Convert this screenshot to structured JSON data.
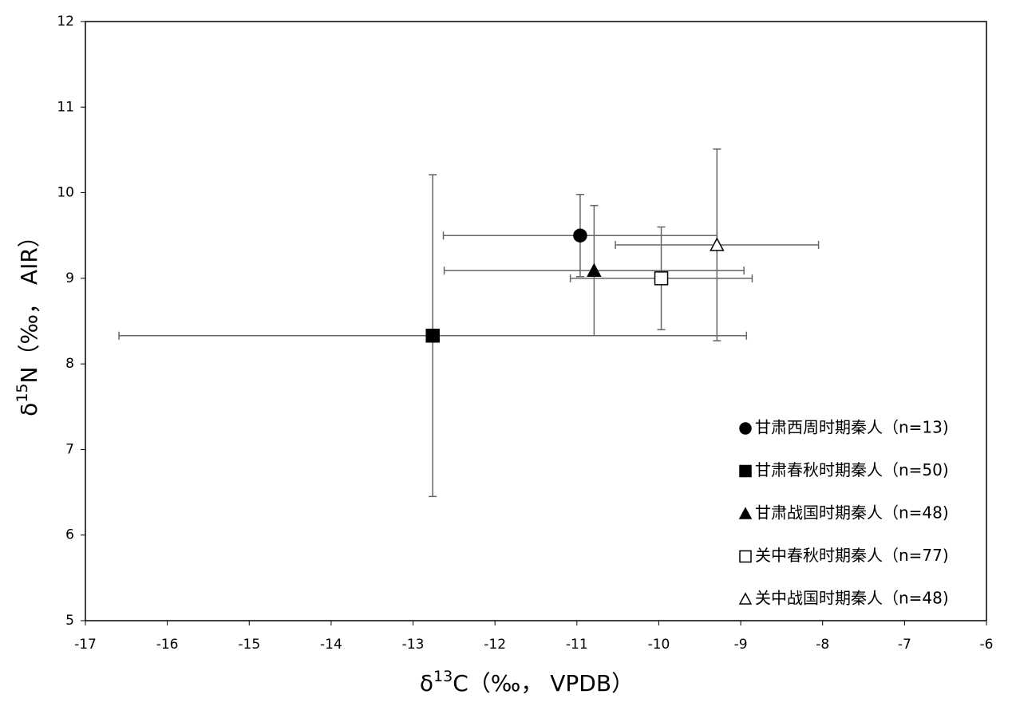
{
  "chart_data": {
    "type": "scatter",
    "x_label": [
      "δ",
      "13",
      "C（‰， VPDB）"
    ],
    "y_label": [
      "δ",
      "15",
      "N（‰， AIR）"
    ],
    "xlim": [
      -17,
      -6
    ],
    "xticks": [
      -17,
      -16,
      -15,
      -14,
      -13,
      -12,
      -11,
      -10,
      -9,
      -8,
      -7,
      -6
    ],
    "ylim": [
      5,
      12
    ],
    "yticks": [
      5,
      6,
      7,
      8,
      9,
      10,
      11,
      12
    ],
    "grid": false,
    "legend": "lower right",
    "error_color": "#666666",
    "series": [
      {
        "name": "甘肃西周时期秦人（n=13)",
        "marker": "circle",
        "filled": true,
        "color": "#000000",
        "x": [
          -10.96
        ],
        "values": [
          9.5
        ],
        "xerr": [
          1.67
        ],
        "yerr": [
          0.48
        ]
      },
      {
        "name": "甘肃春秋时期秦人（n=50)",
        "marker": "square",
        "filled": true,
        "color": "#000000",
        "x": [
          -12.76
        ],
        "values": [
          8.33
        ],
        "xerr": [
          3.83
        ],
        "yerr": [
          1.88
        ]
      },
      {
        "name": "甘肃战国时期秦人（n=48)",
        "marker": "triangle",
        "filled": true,
        "color": "#000000",
        "x": [
          -10.79
        ],
        "values": [
          9.09
        ],
        "xerr": [
          1.83
        ],
        "yerr": [
          0.76
        ]
      },
      {
        "name": "关中春秋时期秦人（n=77)",
        "marker": "square",
        "filled": false,
        "color": "#000000",
        "x": [
          -9.97
        ],
        "values": [
          9.0
        ],
        "xerr": [
          1.11
        ],
        "yerr": [
          0.6
        ]
      },
      {
        "name": "关中战国时期秦人（n=48)",
        "marker": "triangle",
        "filled": false,
        "color": "#000000",
        "x": [
          -9.29
        ],
        "values": [
          9.39
        ],
        "xerr": [
          1.24
        ],
        "yerr": [
          1.12
        ]
      }
    ]
  }
}
